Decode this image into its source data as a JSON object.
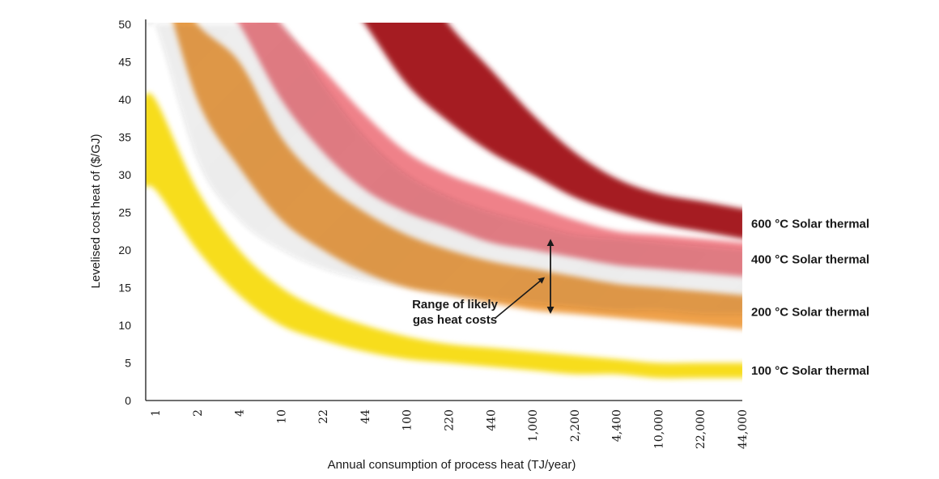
{
  "chart_data": {
    "type": "area",
    "title": "",
    "xlabel": "Annual consumption of process heat (TJ/year)",
    "ylabel": "Levelised cost heat of ($/GJ)",
    "ylim": [
      0,
      50
    ],
    "yticks": [
      0,
      5,
      10,
      15,
      20,
      25,
      30,
      35,
      40,
      45,
      50
    ],
    "x_scale": "log",
    "categories": [
      "1",
      "2",
      "4",
      "10",
      "22",
      "44",
      "100",
      "220",
      "440",
      "1,000",
      "2,200",
      "4,400",
      "10,000",
      "22,000",
      "44,000"
    ],
    "grid": false,
    "legend": "direct labels at right",
    "series": [
      {
        "name": "600 °C Solar thermal",
        "color": "#a51f24",
        "lower": [
          null,
          null,
          null,
          null,
          null,
          50,
          42,
          37,
          33,
          30,
          27,
          25,
          23.5,
          22.5,
          21.5
        ],
        "upper": [
          null,
          null,
          null,
          null,
          null,
          null,
          null,
          50,
          44,
          38,
          33,
          29.5,
          27.5,
          26.5,
          25.5
        ]
      },
      {
        "name": "400 °C Solar thermal",
        "color": "#ef8189",
        "lower": [
          null,
          null,
          50,
          40,
          33,
          28,
          25,
          23,
          21,
          20,
          19,
          18,
          17.5,
          17,
          16.5
        ],
        "upper": [
          null,
          null,
          null,
          50,
          44,
          38,
          33,
          30,
          28,
          26,
          24,
          22.5,
          22,
          21.5,
          21
        ]
      },
      {
        "name": "200 °C Solar thermal",
        "color": "#eea04a",
        "lower": [
          null,
          40,
          31,
          24,
          20,
          17,
          15,
          14,
          13,
          12,
          11.5,
          11,
          10.5,
          10,
          9.5
        ],
        "upper": [
          null,
          50,
          45,
          35,
          29,
          25,
          22,
          20,
          18.5,
          17.5,
          16.5,
          15.5,
          15,
          14.5,
          14
        ]
      },
      {
        "name": "100 °C Solar thermal",
        "color": "#f7dd1c",
        "lower": [
          28,
          20,
          14,
          10,
          8,
          6.5,
          5.5,
          5,
          4.5,
          4,
          3.5,
          3.5,
          3,
          3,
          3
        ],
        "upper": [
          40,
          28,
          20,
          15,
          12,
          10,
          8.5,
          7.5,
          7,
          6.5,
          6,
          5.5,
          5,
          5,
          5
        ]
      }
    ],
    "gas_band": {
      "lower": [
        50,
        32,
        24,
        20,
        17.5,
        16,
        15,
        14,
        13.5,
        13,
        12.5,
        12,
        12,
        11.5,
        11.5
      ],
      "upper": [
        50,
        50,
        50,
        50,
        42,
        35,
        30,
        27,
        25,
        23.5,
        22,
        21.5,
        21,
        20.5,
        20
      ],
      "arrow": {
        "x_category": "1,000",
        "y_low": 12,
        "y_high": 21
      }
    },
    "annotations": [
      {
        "lines": [
          "Range of likely",
          "gas heat costs"
        ]
      }
    ]
  }
}
